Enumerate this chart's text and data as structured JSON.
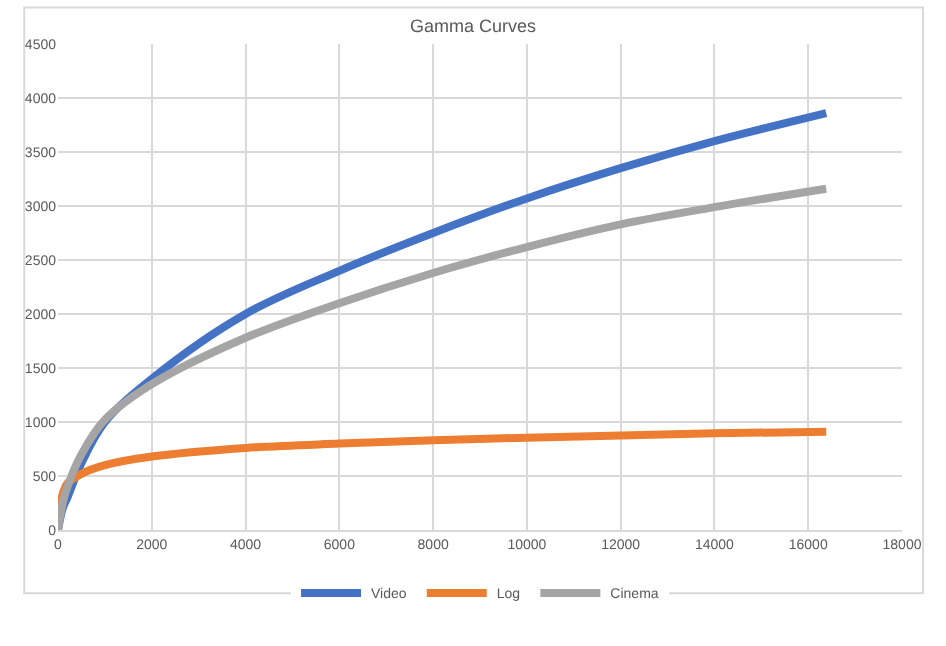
{
  "chart_data": {
    "type": "line",
    "title": "Gamma Curves",
    "xlim": [
      0,
      18000
    ],
    "xticks": [
      0,
      2000,
      4000,
      6000,
      8000,
      10000,
      12000,
      14000,
      16000,
      18000
    ],
    "ylim": [
      0,
      4500
    ],
    "yticks": [
      0,
      500,
      1000,
      1500,
      2000,
      2500,
      3000,
      3500,
      4000,
      4500
    ],
    "grid": true,
    "legend": "bottom",
    "marker": "none",
    "line_style": "solid",
    "series": [
      {
        "name": "Video",
        "color": "#4472c4",
        "x": [
          0,
          100,
          200,
          500,
          1000,
          2000,
          4000,
          6000,
          8000,
          10000,
          12000,
          14000,
          16384
        ],
        "values": [
          0,
          200,
          300,
          620,
          1000,
          1400,
          2000,
          2400,
          2750,
          3070,
          3350,
          3600,
          3860
        ]
      },
      {
        "name": "Log",
        "color": "#ed7d31",
        "x": [
          0,
          50,
          200,
          500,
          1000,
          2000,
          4000,
          6000,
          8000,
          10000,
          12000,
          14000,
          16384
        ],
        "values": [
          100,
          250,
          430,
          520,
          600,
          680,
          760,
          800,
          830,
          855,
          875,
          895,
          910
        ]
      },
      {
        "name": "Cinema",
        "color": "#a5a5a5",
        "x": [
          0,
          100,
          200,
          500,
          1000,
          2000,
          4000,
          6000,
          8000,
          10000,
          12000,
          14000,
          16384
        ],
        "values": [
          0,
          250,
          400,
          700,
          1020,
          1350,
          1780,
          2100,
          2380,
          2620,
          2830,
          2990,
          3160
        ]
      }
    ]
  }
}
